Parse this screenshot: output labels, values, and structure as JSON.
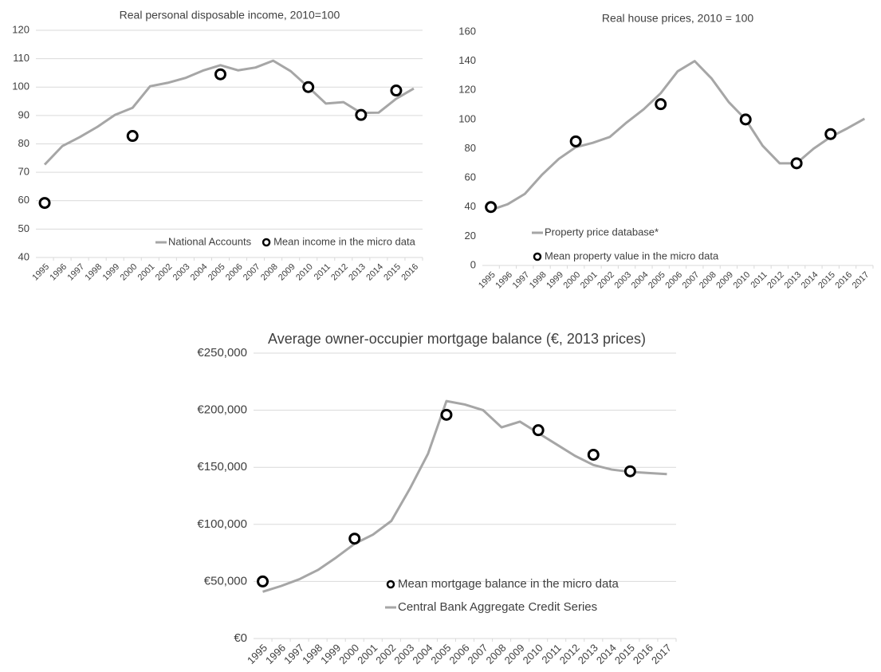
{
  "chart_data": [
    {
      "type": "line",
      "title": "Real personal disposable income, 2010=100",
      "categories": [
        "1995",
        "1996",
        "1997",
        "1998",
        "1999",
        "2000",
        "2001",
        "2002",
        "2003",
        "2004",
        "2005",
        "2006",
        "2007",
        "2008",
        "2009",
        "2010",
        "2011",
        "2012",
        "2013",
        "2014",
        "2015",
        "2016"
      ],
      "series": [
        {
          "name": "National Accounts",
          "type": "line",
          "color": "#a6a6a6",
          "values": [
            72.7,
            79.2,
            82.4,
            86,
            90.2,
            92.7,
            100.3,
            101.5,
            103.2,
            105.8,
            107.7,
            105.9,
            106.9,
            109.3,
            105.6,
            100,
            94.2,
            94.7,
            90.9,
            91,
            95.9,
            99.5
          ]
        },
        {
          "name": "Mean income in the micro data",
          "type": "scatter",
          "color": "#000000",
          "values": [
            59.2,
            null,
            null,
            null,
            null,
            82.8,
            null,
            null,
            null,
            null,
            104.5,
            null,
            null,
            null,
            null,
            100,
            null,
            null,
            90.2,
            null,
            98.8,
            null
          ]
        }
      ],
      "ylim": [
        40,
        120
      ],
      "yticks": [
        40,
        50,
        60,
        70,
        80,
        90,
        100,
        110,
        120
      ],
      "grid": true,
      "legend": "lower right"
    },
    {
      "type": "line",
      "title": "Real house prices, 2010 = 100",
      "categories": [
        "1995",
        "1996",
        "1997",
        "1998",
        "1999",
        "2000",
        "2001",
        "2002",
        "2003",
        "2004",
        "2005",
        "2006",
        "2007",
        "2008",
        "2009",
        "2010",
        "2011",
        "2012",
        "2013",
        "2014",
        "2015",
        "2016",
        "2017"
      ],
      "series": [
        {
          "name": "Property price database*",
          "type": "line",
          "color": "#a6a6a6",
          "values": [
            38,
            42,
            49,
            62,
            73,
            81,
            84,
            88,
            98,
            107,
            118,
            133,
            140,
            128,
            112,
            100,
            82,
            70,
            70,
            80,
            88,
            94,
            100.5
          ]
        },
        {
          "name": "Mean property value in the micro data",
          "type": "scatter",
          "color": "#000000",
          "values": [
            40,
            null,
            null,
            null,
            null,
            85,
            null,
            null,
            null,
            null,
            110.5,
            null,
            null,
            null,
            null,
            100,
            null,
            null,
            70,
            null,
            90,
            null,
            null
          ]
        }
      ],
      "ylim": [
        0,
        160
      ],
      "yticks": [
        0,
        20,
        40,
        60,
        80,
        100,
        120,
        140,
        160
      ],
      "grid": false,
      "legend": "lower left"
    },
    {
      "type": "line",
      "title": "Average owner-occupier mortgage balance (€, 2013 prices)",
      "categories": [
        "1995",
        "1996",
        "1997",
        "1998",
        "1999",
        "2000",
        "2001",
        "2002",
        "2003",
        "2004",
        "2005",
        "2006",
        "2007",
        "2008",
        "2009",
        "2010",
        "2011",
        "2012",
        "2013",
        "2014",
        "2015",
        "2016",
        "2017"
      ],
      "series": [
        {
          "name": "Mean mortgage balance in the micro data",
          "type": "scatter",
          "color": "#000000",
          "values": [
            50000,
            null,
            null,
            null,
            null,
            87500,
            null,
            null,
            null,
            null,
            196000,
            null,
            null,
            null,
            null,
            182500,
            null,
            null,
            161000,
            null,
            146500,
            null,
            null
          ]
        },
        {
          "name": "Central Bank Aggregate Credit Series",
          "type": "line",
          "color": "#a6a6a6",
          "values": [
            41000,
            46000,
            52000,
            60000,
            71000,
            83000,
            91000,
            103000,
            131000,
            162000,
            208000,
            205000,
            200000,
            185000,
            190000,
            180000,
            170000,
            160000,
            152000,
            148000,
            146000,
            145000,
            144000
          ]
        }
      ],
      "ylim": [
        0,
        250000
      ],
      "yticks": [
        {
          "value": 0,
          "label": "€0"
        },
        {
          "value": 50000,
          "label": "€50,000"
        },
        {
          "value": 100000,
          "label": "€100,000"
        },
        {
          "value": 150000,
          "label": "€150,000"
        },
        {
          "value": 200000,
          "label": "€200,000"
        },
        {
          "value": 250000,
          "label": "€250,000"
        }
      ],
      "grid": true,
      "legend": "lower center"
    }
  ]
}
